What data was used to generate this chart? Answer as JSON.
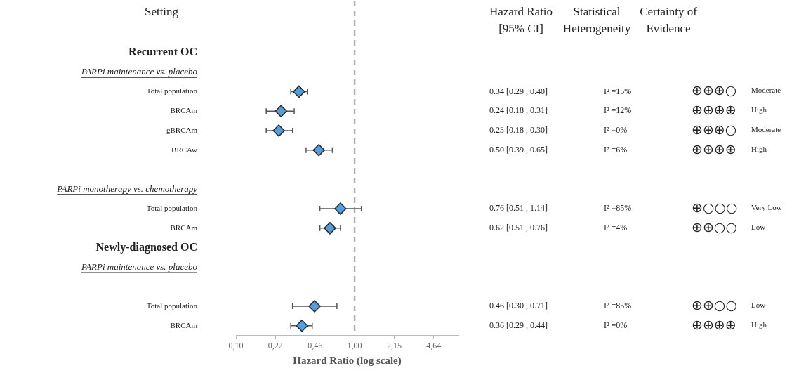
{
  "chart_data": {
    "type": "scatter",
    "orientation": "horizontal",
    "ylabel": "Setting",
    "xlabel": "Hazard Ratio (log scale)",
    "categories": [
      "Recurrent OC",
      "PARPi maintenance vs. placebo",
      "Total population",
      "BRCAm",
      "gBRCAm",
      "BRCAw",
      null,
      "PARPi monotherapy vs. chemotherapy",
      "Total population",
      "BRCAm",
      "Newly-diagnosed OC",
      "PARPi maintenance vs. placebo",
      null,
      "Total population",
      "BRCAm"
    ],
    "values": [
      null,
      null,
      0.34,
      0.24,
      0.23,
      0.5,
      null,
      null,
      0.76,
      0.62,
      null,
      null,
      null,
      0.46,
      0.36
    ],
    "errors": [
      null,
      null,
      [
        0.29,
        0.4
      ],
      [
        0.18,
        0.31
      ],
      [
        0.18,
        0.3
      ],
      [
        0.39,
        0.65
      ],
      null,
      null,
      [
        0.51,
        1.14
      ],
      [
        0.51,
        0.76
      ],
      null,
      null,
      null,
      [
        0.3,
        0.71
      ],
      [
        0.29,
        0.44
      ]
    ],
    "value_labels": [
      null,
      null,
      "0.34 [0.29 , 0.40]",
      "0.24 [0.18 , 0.31]",
      "0.23 [0.18 , 0.30]",
      "0.50 [0.39 , 0.65]",
      null,
      null,
      "0.76 [0.51 , 1.14]",
      "0.62 [0.51 , 0.76]",
      null,
      null,
      null,
      "0.46 [0.30 , 0.71]",
      "0.36 [0.29 , 0.44]"
    ],
    "color": "#5b9bd5",
    "marker": "diamond",
    "log": "x",
    "grid": false,
    "legend": false,
    "xlim": [
      0.1,
      7.5
    ],
    "xticks": [
      {
        "value": 0.1,
        "label": "0,10"
      },
      {
        "value": 0.2154,
        "label": "0,22"
      },
      {
        "value": 0.4642,
        "label": "0,46"
      },
      {
        "value": 1,
        "label": "1,00"
      },
      {
        "value": 2.154,
        "label": "2,15"
      },
      {
        "value": 4.642,
        "label": "4,64"
      }
    ],
    "ref_lines": [
      {
        "axis": "x",
        "value": 1,
        "color": "#b0b0b0",
        "line_style": "dashed"
      }
    ],
    "annotations": [
      "Hazard Ratio [95% CI]",
      "Statistical Heterogeneity",
      "Certainty of Evidence",
      "I² =15%",
      "⊕⊕⊕○",
      "Moderate",
      "I² =12%",
      "⊕⊕⊕⊕",
      "High",
      "I² =0%",
      "⊕⊕⊕○",
      "Moderate",
      "I² =6%",
      "⊕⊕⊕⊕",
      "High",
      "I² =85%",
      "⊕○○○",
      "Very Low",
      "I² =4%",
      "⊕⊕○○",
      "Low",
      "I² =85%",
      "⊕⊕○○",
      "Low",
      "I² =0%",
      "⊕⊕⊕⊕",
      "High"
    ]
  }
}
